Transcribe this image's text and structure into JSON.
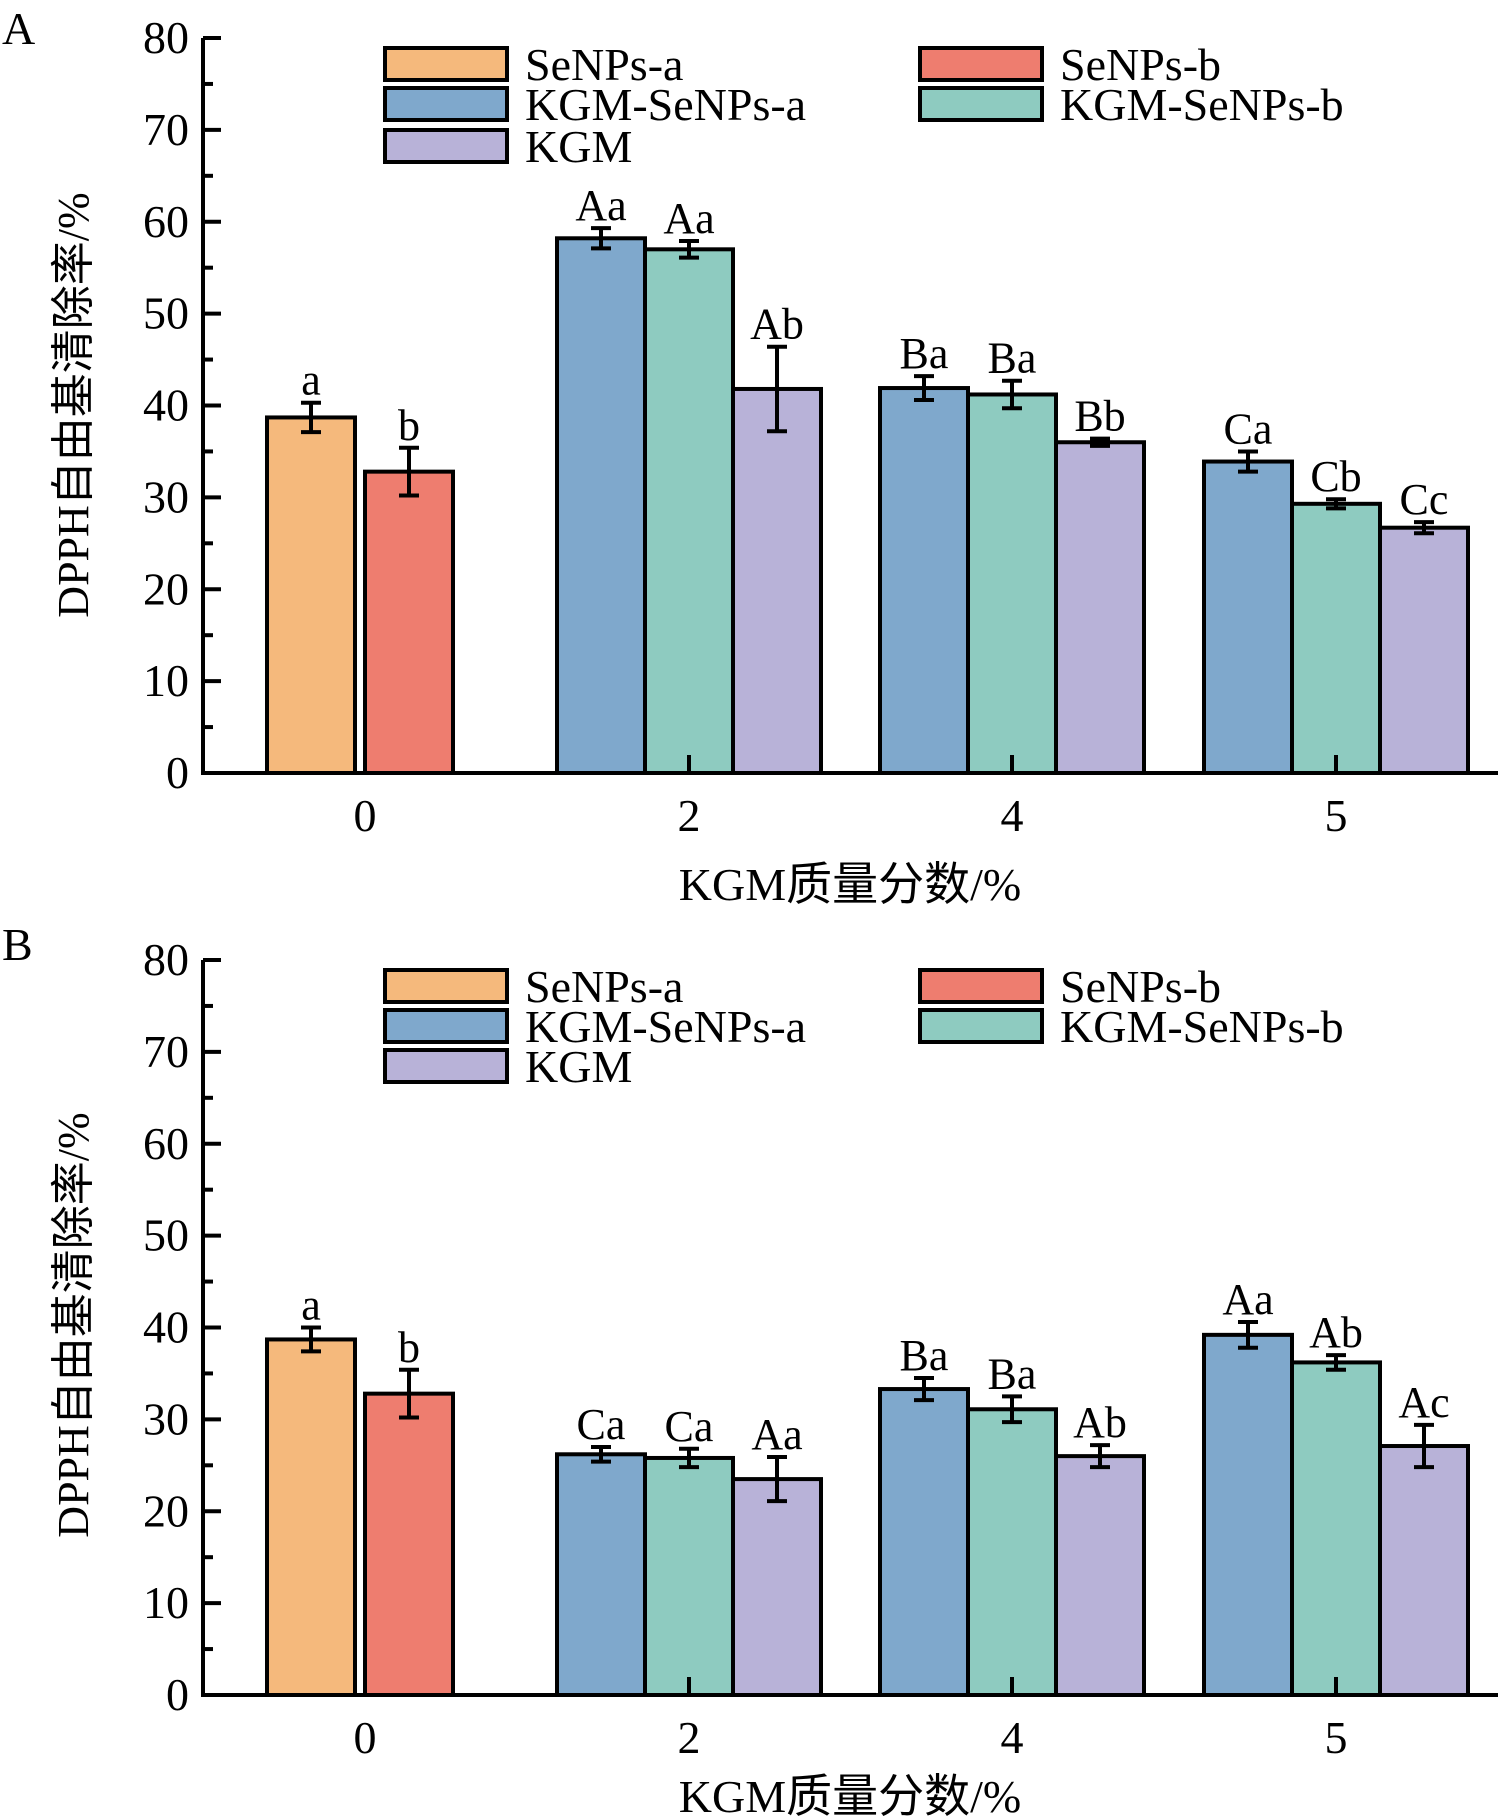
{
  "figure": {
    "colors": {
      "SeNPs-a": "#f5b97c",
      "SeNPs-b": "#ee7d6f",
      "KGM-SeNPs-a": "#7fa8cc",
      "KGM-SeNPs-b": "#8ecbc0",
      "KGM": "#b8b2d8"
    },
    "legend_layout": [
      [
        "SeNPs-a",
        "SeNPs-b"
      ],
      [
        "KGM-SeNPs-a",
        "KGM-SeNPs-b"
      ],
      [
        "KGM"
      ]
    ]
  },
  "chart_data": [
    {
      "panel": "A",
      "type": "bar",
      "xlabel": "KGM质量分数/%",
      "ylabel": "DPPH自由基清除率/%",
      "ylim": [
        0,
        80
      ],
      "yticks": [
        0,
        10,
        20,
        30,
        40,
        50,
        60,
        70,
        80
      ],
      "categories": [
        "0",
        "2",
        "4",
        "5"
      ],
      "groups": [
        {
          "category": "0",
          "bars": [
            {
              "series": "SeNPs-a",
              "value": 38.7,
              "error": 1.6,
              "label": "a"
            },
            {
              "series": "SeNPs-b",
              "value": 32.8,
              "error": 2.6,
              "label": "b"
            }
          ]
        },
        {
          "category": "2",
          "bars": [
            {
              "series": "KGM-SeNPs-a",
              "value": 58.2,
              "error": 1.1,
              "label": "Aa"
            },
            {
              "series": "KGM-SeNPs-b",
              "value": 57.0,
              "error": 0.9,
              "label": "Aa"
            },
            {
              "series": "KGM",
              "value": 41.8,
              "error": 4.6,
              "label": "Ab"
            }
          ]
        },
        {
          "category": "4",
          "bars": [
            {
              "series": "KGM-SeNPs-a",
              "value": 41.9,
              "error": 1.3,
              "label": "Ba"
            },
            {
              "series": "KGM-SeNPs-b",
              "value": 41.2,
              "error": 1.5,
              "label": "Ba"
            },
            {
              "series": "KGM",
              "value": 36.0,
              "error": 0.4,
              "label": "Bb"
            }
          ]
        },
        {
          "category": "5",
          "bars": [
            {
              "series": "KGM-SeNPs-a",
              "value": 33.9,
              "error": 1.1,
              "label": "Ca"
            },
            {
              "series": "KGM-SeNPs-b",
              "value": 29.3,
              "error": 0.5,
              "label": "Cb"
            },
            {
              "series": "KGM",
              "value": 26.7,
              "error": 0.6,
              "label": "Cc"
            }
          ]
        }
      ]
    },
    {
      "panel": "B",
      "type": "bar",
      "xlabel": "KGM质量分数/%",
      "ylabel": "DPPH自由基清除率/%",
      "ylim": [
        0,
        80
      ],
      "yticks": [
        0,
        10,
        20,
        30,
        40,
        50,
        60,
        70,
        80
      ],
      "categories": [
        "0",
        "2",
        "4",
        "5"
      ],
      "groups": [
        {
          "category": "0",
          "bars": [
            {
              "series": "SeNPs-a",
              "value": 38.7,
              "error": 1.3,
              "label": "a"
            },
            {
              "series": "SeNPs-b",
              "value": 32.8,
              "error": 2.6,
              "label": "b"
            }
          ]
        },
        {
          "category": "2",
          "bars": [
            {
              "series": "KGM-SeNPs-a",
              "value": 26.2,
              "error": 0.8,
              "label": "Ca"
            },
            {
              "series": "KGM-SeNPs-b",
              "value": 25.8,
              "error": 1.0,
              "label": "Ca"
            },
            {
              "series": "KGM",
              "value": 23.5,
              "error": 2.4,
              "label": "Aa"
            }
          ]
        },
        {
          "category": "4",
          "bars": [
            {
              "series": "KGM-SeNPs-a",
              "value": 33.3,
              "error": 1.2,
              "label": "Ba"
            },
            {
              "series": "KGM-SeNPs-b",
              "value": 31.1,
              "error": 1.4,
              "label": "Ba"
            },
            {
              "series": "KGM",
              "value": 26.0,
              "error": 1.2,
              "label": "Ab"
            }
          ]
        },
        {
          "category": "5",
          "bars": [
            {
              "series": "KGM-SeNPs-a",
              "value": 39.2,
              "error": 1.4,
              "label": "Aa"
            },
            {
              "series": "KGM-SeNPs-b",
              "value": 36.2,
              "error": 0.8,
              "label": "Ab"
            },
            {
              "series": "KGM",
              "value": 27.1,
              "error": 2.3,
              "label": "Ac"
            }
          ]
        }
      ]
    }
  ]
}
